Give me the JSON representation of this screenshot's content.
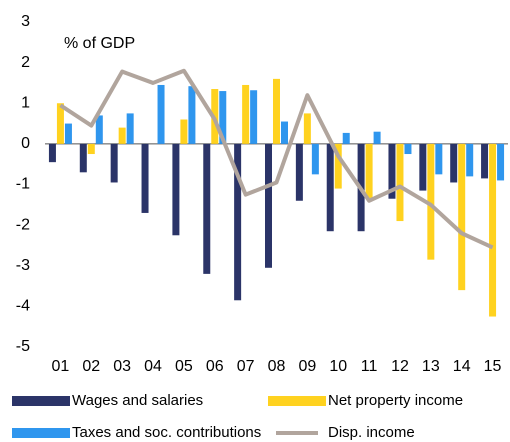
{
  "chart_data": {
    "type": "bar-line",
    "annotation": "% of GDP",
    "categories": [
      "01",
      "02",
      "03",
      "04",
      "05",
      "06",
      "07",
      "08",
      "09",
      "10",
      "11",
      "12",
      "13",
      "14",
      "15"
    ],
    "series": [
      {
        "name": "Wages and salaries",
        "color": "#2b3468",
        "kind": "bar",
        "values": [
          -0.45,
          -0.7,
          -0.95,
          -1.7,
          -2.25,
          -3.2,
          -3.85,
          -3.05,
          -1.4,
          -2.15,
          -2.15,
          -1.35,
          -1.15,
          -0.95,
          -0.85
        ]
      },
      {
        "name": "Net property income",
        "color": "#ffd21f",
        "kind": "bar",
        "values": [
          1.0,
          -0.25,
          0.4,
          0,
          0.6,
          1.35,
          1.45,
          1.6,
          0.75,
          -1.1,
          -1.35,
          -1.9,
          -2.85,
          -3.6,
          -4.25
        ]
      },
      {
        "name": "Taxes and soc. contributions",
        "color": "#2f96ee",
        "kind": "bar",
        "values": [
          0.5,
          0.7,
          0.75,
          1.45,
          1.42,
          1.3,
          1.32,
          0.55,
          -0.75,
          0.27,
          0.3,
          -0.25,
          -0.75,
          -0.8,
          -0.9
        ]
      },
      {
        "name": "Disp. income",
        "color": "#b1a59d",
        "kind": "line",
        "values": [
          0.95,
          0.45,
          1.78,
          1.5,
          1.8,
          0.6,
          -1.25,
          -0.95,
          1.2,
          -0.3,
          -1.4,
          -1.05,
          -1.5,
          -2.2,
          -2.55
        ]
      }
    ],
    "ylim": [
      -5,
      3
    ],
    "yticks": [
      -5,
      -4,
      -3,
      -2,
      -1,
      0,
      1,
      2,
      3
    ],
    "grid": false
  }
}
